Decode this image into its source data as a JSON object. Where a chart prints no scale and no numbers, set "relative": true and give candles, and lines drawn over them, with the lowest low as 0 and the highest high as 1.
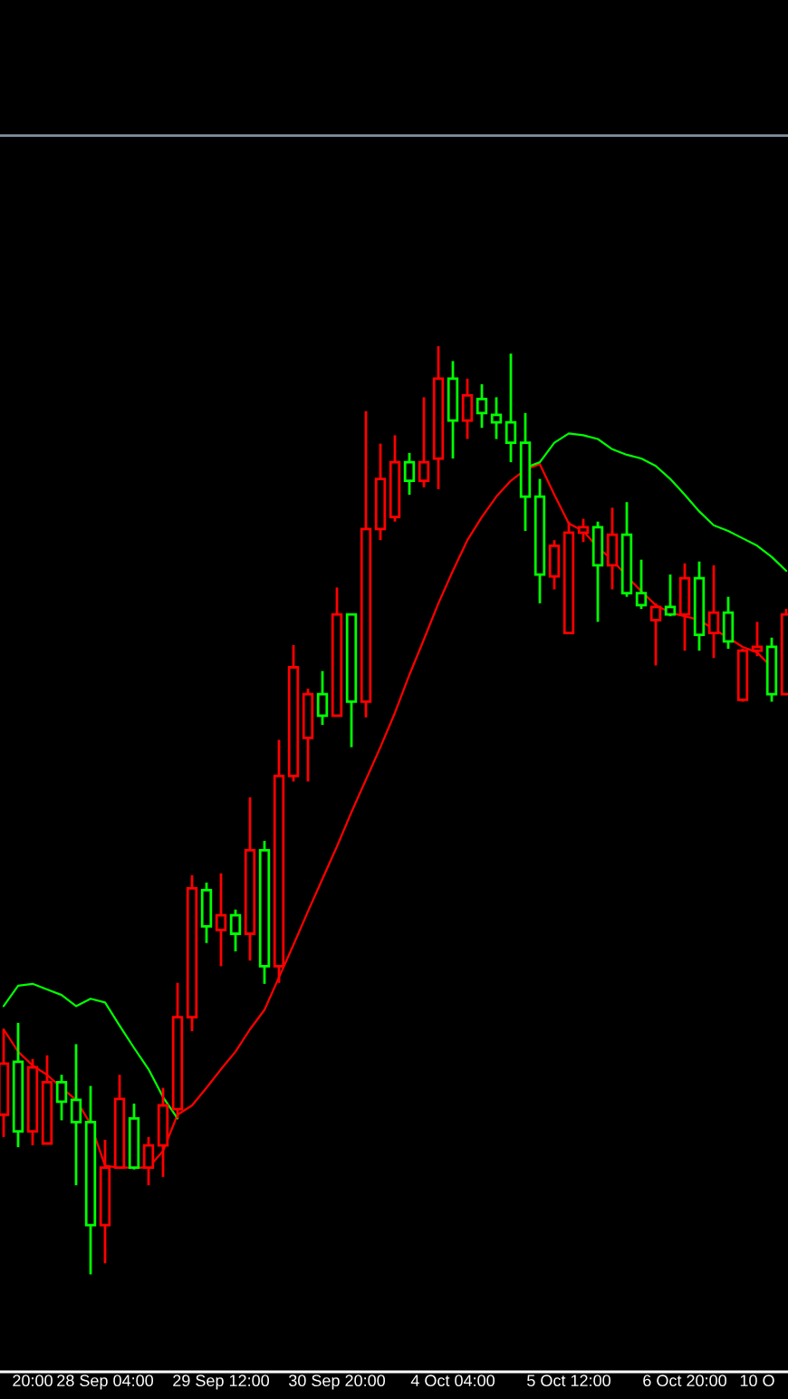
{
  "chart_data": {
    "type": "candlestick",
    "relative": true,
    "categories": [
      null,
      null,
      "20:00",
      null,
      null,
      null,
      null,
      "28 Sep 04:00",
      null,
      null,
      null,
      null,
      null,
      null,
      null,
      "29 Sep 12:00",
      null,
      null,
      null,
      null,
      null,
      null,
      null,
      "30 Sep 20:00",
      null,
      null,
      null,
      null,
      null,
      null,
      null,
      "4 Oct 04:00",
      null,
      null,
      null,
      null,
      null,
      null,
      null,
      "5 Oct 12:00",
      null,
      null,
      null,
      null,
      null,
      null,
      null,
      "6 Oct 20:00",
      null,
      null,
      null,
      null,
      "10 O",
      null,
      null
    ],
    "ohlc": [
      [
        0.172,
        0.264,
        0.148,
        0.227
      ],
      [
        0.229,
        0.271,
        0.137,
        0.154
      ],
      [
        0.154,
        0.232,
        0.139,
        0.223
      ],
      [
        0.141,
        0.236,
        0.141,
        0.207
      ],
      [
        0.207,
        0.215,
        0.166,
        0.186
      ],
      [
        0.188,
        0.248,
        0.096,
        0.164
      ],
      [
        0.164,
        0.203,
        0,
        0.053
      ],
      [
        0.053,
        0.145,
        0.012,
        0.115
      ],
      [
        0.115,
        0.215,
        0.115,
        0.189
      ],
      [
        0.168,
        0.184,
        0.113,
        0.115
      ],
      [
        0.115,
        0.148,
        0.096,
        0.139
      ],
      [
        0.139,
        0.201,
        0.105,
        0.182
      ],
      [
        0.178,
        0.314,
        0.168,
        0.277
      ],
      [
        0.277,
        0.43,
        0.262,
        0.416
      ],
      [
        0.414,
        0.422,
        0.357,
        0.375
      ],
      [
        0.371,
        0.432,
        0.332,
        0.387
      ],
      [
        0.387,
        0.393,
        0.348,
        0.367
      ],
      [
        0.367,
        0.514,
        0.338,
        0.457
      ],
      [
        0.457,
        0.467,
        0.313,
        0.332
      ],
      [
        0.332,
        0.576,
        0.314,
        0.537
      ],
      [
        0.537,
        0.678,
        0.531,
        0.654
      ],
      [
        0.578,
        0.631,
        0.531,
        0.625
      ],
      [
        0.625,
        0.65,
        0.592,
        0.602
      ],
      [
        0.602,
        0.74,
        0.602,
        0.711
      ],
      [
        0.711,
        0.711,
        0.568,
        0.617
      ],
      [
        0.617,
        0.93,
        0.6,
        0.803
      ],
      [
        0.803,
        0.895,
        0.791,
        0.857
      ],
      [
        0.816,
        0.904,
        0.811,
        0.875
      ],
      [
        0.875,
        0.885,
        0.84,
        0.855
      ],
      [
        0.855,
        0.945,
        0.848,
        0.875
      ],
      [
        0.879,
        1,
        0.846,
        0.965
      ],
      [
        0.965,
        0.984,
        0.879,
        0.92
      ],
      [
        0.92,
        0.965,
        0.9,
        0.947
      ],
      [
        0.943,
        0.959,
        0.912,
        0.928
      ],
      [
        0.926,
        0.945,
        0.9,
        0.918
      ],
      [
        0.918,
        0.992,
        0.875,
        0.896
      ],
      [
        0.896,
        0.928,
        0.801,
        0.838
      ],
      [
        0.838,
        0.857,
        0.723,
        0.754
      ],
      [
        0.752,
        0.791,
        0.738,
        0.785
      ],
      [
        0.691,
        0.811,
        0.691,
        0.799
      ],
      [
        0.799,
        0.814,
        0.789,
        0.805
      ],
      [
        0.805,
        0.811,
        0.703,
        0.764
      ],
      [
        0.764,
        0.826,
        0.738,
        0.797
      ],
      [
        0.797,
        0.832,
        0.73,
        0.734
      ],
      [
        0.734,
        0.77,
        0.717,
        0.721
      ],
      [
        0.705,
        0.723,
        0.656,
        0.719
      ],
      [
        0.719,
        0.754,
        0.709,
        0.711
      ],
      [
        0.711,
        0.766,
        0.672,
        0.75
      ],
      [
        0.75,
        0.768,
        0.672,
        0.689
      ],
      [
        0.691,
        0.764,
        0.664,
        0.713
      ],
      [
        0.713,
        0.73,
        0.674,
        0.682
      ],
      [
        0.619,
        0.674,
        0.617,
        0.672
      ],
      [
        0.672,
        0.703,
        0.666,
        0.676
      ],
      [
        0.676,
        0.686,
        0.617,
        0.625
      ],
      [
        0.625,
        0.717,
        0.625,
        0.711
      ]
    ],
    "colors": [
      "#ff0000",
      "#00ff00",
      "#ff0000",
      "#ff0000",
      "#00ff00",
      "#00ff00",
      "#00ff00",
      "#ff0000",
      "#ff0000",
      "#00ff00",
      "#ff0000",
      "#ff0000",
      "#ff0000",
      "#ff0000",
      "#00ff00",
      "#ff0000",
      "#00ff00",
      "#ff0000",
      "#00ff00",
      "#ff0000",
      "#ff0000",
      "#ff0000",
      "#00ff00",
      "#ff0000",
      "#00ff00",
      "#ff0000",
      "#ff0000",
      "#ff0000",
      "#00ff00",
      "#ff0000",
      "#ff0000",
      "#00ff00",
      "#ff0000",
      "#00ff00",
      "#00ff00",
      "#00ff00",
      "#00ff00",
      "#00ff00",
      "#ff0000",
      "#ff0000",
      "#ff0000",
      "#00ff00",
      "#ff0000",
      "#00ff00",
      "#00ff00",
      "#ff0000",
      "#00ff00",
      "#ff0000",
      "#00ff00",
      "#ff0000",
      "#00ff00",
      "#ff0000",
      "#ff0000",
      "#00ff00",
      "#ff0000"
    ],
    "series": [
      {
        "type": "line",
        "color": "#ff0000",
        "values": [
          0.264,
          0.24,
          0.225,
          0.215,
          0.201,
          0.188,
          0.162,
          0.117,
          0.115,
          0.115,
          0.115,
          0.133,
          0.172,
          0.182,
          0.201,
          0.221,
          0.24,
          0.264,
          0.285,
          0.32,
          0.355,
          0.391,
          0.426,
          0.461,
          0.498,
          0.533,
          0.568,
          0.605,
          0.646,
          0.684,
          0.723,
          0.758,
          0.791,
          0.816,
          0.838,
          0.855,
          0.867,
          0.873,
          0.84,
          0.809,
          0.801,
          0.783,
          0.77,
          0.752,
          0.736,
          0.721,
          0.713,
          0.709,
          0.705,
          0.695,
          0.686,
          0.676,
          0.67,
          0.654,
          null
        ]
      },
      {
        "type": "line",
        "color": "#00ff00",
        "values": [
          0.289,
          0.311,
          0.313,
          0.307,
          0.301,
          0.289,
          0.297,
          0.293,
          0.268,
          0.244,
          0.221,
          0.191,
          0.168,
          null,
          null,
          null,
          null,
          null,
          null,
          null,
          null,
          null,
          null,
          null,
          null,
          null,
          null,
          null,
          null,
          null,
          null,
          null,
          null,
          null,
          null,
          null,
          0.869,
          0.875,
          0.896,
          0.906,
          0.904,
          0.9,
          0.889,
          0.883,
          0.879,
          0.871,
          0.857,
          0.84,
          0.822,
          0.807,
          0.801,
          0.793,
          0.785,
          0.773,
          0.758
        ]
      }
    ],
    "ref_lines": [
      {
        "axis": "y",
        "value": 1.227,
        "color": "#8090a0"
      }
    ],
    "grid": false,
    "legend": false
  }
}
